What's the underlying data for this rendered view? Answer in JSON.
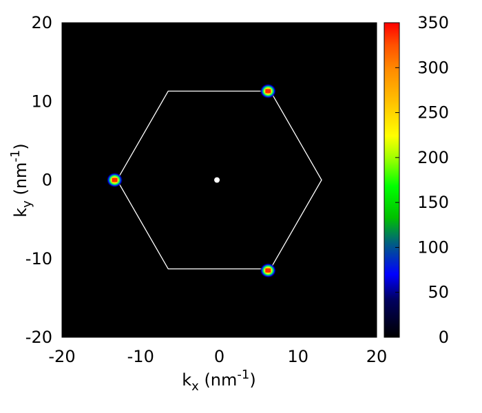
{
  "chart_data": {
    "type": "heatmap",
    "xlabel": {
      "base": "k",
      "sub": "x",
      "unit_pre": " (nm",
      "sup": "-1",
      "unit_post": ")"
    },
    "ylabel": {
      "base": "k",
      "sub": "y",
      "unit_pre": " (nm",
      "sup": "-1",
      "unit_post": ")"
    },
    "xlim": [
      -20,
      20
    ],
    "ylim": [
      -20,
      20
    ],
    "x_ticks": [
      "-20",
      "-10",
      "0",
      "10",
      "20"
    ],
    "y_ticks": [
      "20",
      "10",
      "0",
      "-10",
      "-20"
    ],
    "background_color": "#000000",
    "grid": false,
    "colorbar": {
      "range": [
        0,
        350
      ],
      "ticks": [
        "350",
        "300",
        "250",
        "200",
        "150",
        "100",
        "50",
        "0"
      ],
      "palette": [
        "#000000",
        "#0000ff",
        "#00ff00",
        "#ffff00",
        "#ff8c00",
        "#ff0000"
      ]
    },
    "brillouin_zone_hexagon": [
      [
        13,
        0
      ],
      [
        6.5,
        11.3
      ],
      [
        -6.5,
        11.3
      ],
      [
        -13,
        0
      ],
      [
        -6.5,
        -11.3
      ],
      [
        6.5,
        -11.3
      ]
    ],
    "hexagon_color": "#ffffff",
    "center_marker": {
      "x": -0.3,
      "y": 0
    },
    "peaks": [
      {
        "x": 6.2,
        "y": 11.3,
        "intensity": 350
      },
      {
        "x": -13.3,
        "y": 0,
        "intensity": 350
      },
      {
        "x": 6.2,
        "y": -11.5,
        "intensity": 350
      }
    ]
  }
}
